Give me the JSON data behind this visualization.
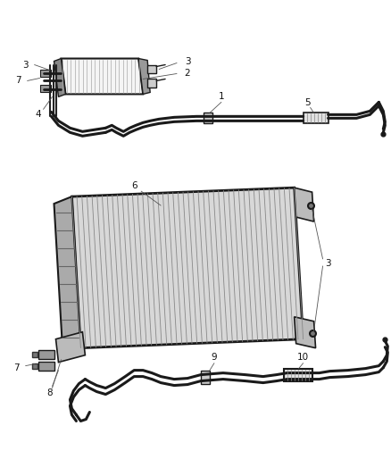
{
  "background_color": "#ffffff",
  "line_color": "#1a1a1a",
  "label_color": "#111111",
  "figsize": [
    4.38,
    5.33
  ],
  "dpi": 100,
  "font_size": 7.5,
  "leader_lw": 0.6,
  "tube_lw": 2.2,
  "thin_lw": 0.8,
  "hatch_color": "#555555",
  "fill_color": "#cccccc",
  "dark_fill": "#333333"
}
